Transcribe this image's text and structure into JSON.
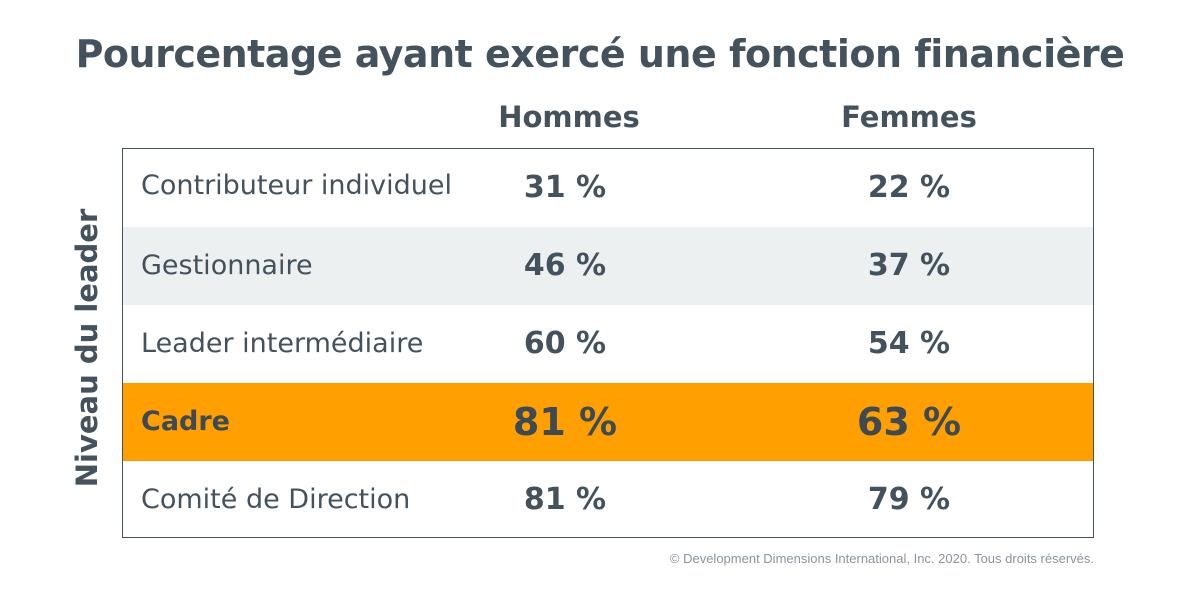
{
  "chart_data": {
    "type": "table",
    "title": "Pourcentage ayant exercé une fonction financière",
    "ylabel": "Niveau du leader",
    "columns": [
      "Hommes",
      "Femmes"
    ],
    "rows": [
      {
        "label": "Contributeur individuel",
        "values": [
          "31 %",
          "22 %"
        ]
      },
      {
        "label": "Gestionnaire",
        "values": [
          "46 %",
          "37 %"
        ]
      },
      {
        "label": "Leader intermédiaire",
        "values": [
          "60 %",
          "54 %"
        ]
      },
      {
        "label": "Cadre",
        "values": [
          "81 %",
          "63 %"
        ]
      },
      {
        "label": "Comité de Direction",
        "values": [
          "81 %",
          "79 %"
        ]
      }
    ],
    "highlight_row": "Cadre",
    "highlight_color": "#ffa000",
    "alt_row_color": "#edf0f1",
    "text_color": "#44525e"
  },
  "footer": "© Development Dimensions International, Inc. 2020. Tous droits réservés."
}
